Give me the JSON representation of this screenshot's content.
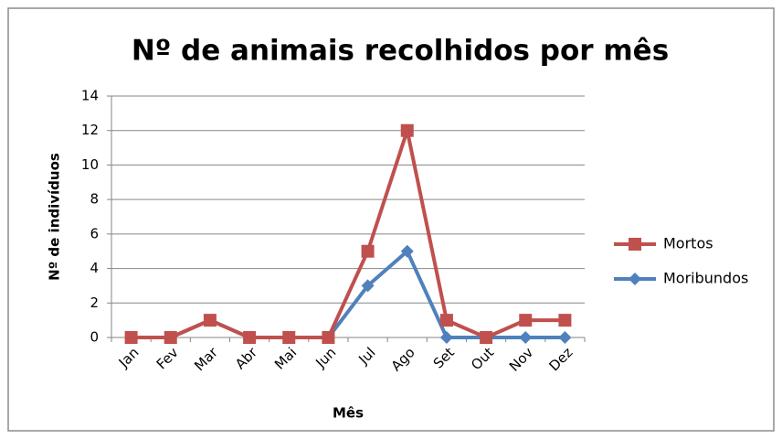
{
  "chart_data": {
    "type": "line",
    "title": "Nº de animais recolhidos por mês",
    "x_label": "Mês",
    "y_label": "Nº de indivíduos",
    "categories": [
      "Jan",
      "Fev",
      "Mar",
      "Abr",
      "Mai",
      "Jun",
      "Jul",
      "Ago",
      "Set",
      "Out",
      "Nov",
      "Dez"
    ],
    "series": [
      {
        "name": "Mortos",
        "color": "#c0504d",
        "marker": "square",
        "values": [
          0,
          0,
          1,
          0,
          0,
          0,
          5,
          12,
          1,
          0,
          1,
          1
        ]
      },
      {
        "name": "Moribundos",
        "color": "#4f81bd",
        "marker": "diamond",
        "values": [
          0,
          0,
          1,
          0,
          0,
          0,
          3,
          5,
          0,
          0,
          0,
          0
        ]
      }
    ],
    "ylim": [
      0,
      14
    ],
    "yticks": [
      0,
      2,
      4,
      6,
      8,
      10,
      12,
      14
    ],
    "grid": true,
    "legend": "right"
  }
}
